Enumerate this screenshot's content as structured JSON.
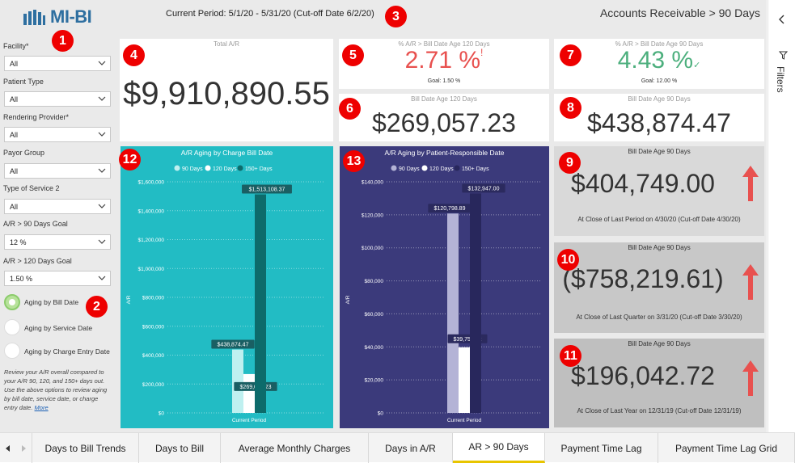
{
  "header": {
    "brand": "MI-BI",
    "period": "Current Period: 5/1/20 - 5/31/20 (Cut-off Date 6/2/20)",
    "page_title": "Accounts Receivable > 90 Days"
  },
  "badges": [
    "1",
    "2",
    "3",
    "4",
    "5",
    "6",
    "7",
    "8",
    "9",
    "10",
    "11",
    "12",
    "13"
  ],
  "slicers": [
    {
      "label": "Facility*",
      "value": "All"
    },
    {
      "label": "Patient Type",
      "value": "All"
    },
    {
      "label": "Rendering Provider*",
      "value": "All"
    },
    {
      "label": "Payor Group",
      "value": "All"
    },
    {
      "label": "Type of Service 2",
      "value": "All"
    },
    {
      "label": "A/R > 90 Days Goal",
      "value": "12 %"
    },
    {
      "label": "A/R > 120 Days Goal",
      "value": "1.50 %"
    }
  ],
  "aging_options": [
    {
      "label": "Aging by Bill Date",
      "selected": true
    },
    {
      "label": "Aging by Service Date",
      "selected": false
    },
    {
      "label": "Aging by Charge Entry Date",
      "selected": false
    }
  ],
  "note": {
    "text": "Review your A/R overall compared to your A/R 90, 120, and 150+ days out. Use the above options to review aging by bill date, service date, or charge entry date.",
    "link": "More"
  },
  "cards": {
    "total_ar": {
      "title": "Total A/R",
      "value": "$9,910,890.55"
    },
    "pct_120": {
      "title": "% A/R > Bill Date Age 120 Days",
      "value": "2.71 %",
      "flag": "!",
      "goal": "Goal: 1.50 %",
      "color": "#e8514f"
    },
    "pct_90": {
      "title": "% A/R > Bill Date Age 90 Days",
      "value": "4.43 %",
      "flag": "✓",
      "goal": "Goal: 12.00 %",
      "color": "#4caf7d"
    },
    "age_120": {
      "title": "Bill Date Age 120 Days",
      "value": "$269,057.23"
    },
    "age_90": {
      "title": "Bill Date Age 90 Days",
      "value": "$438,874.47"
    },
    "last_period": {
      "title": "Bill Date Age 90 Days",
      "value": "$404,749.00",
      "sub": "At Close of Last Period on 4/30/20 (Cut-off Date 4/30/20)"
    },
    "last_quarter": {
      "title": "Bill Date Age 90 Days",
      "value": "($758,219.61)",
      "sub": "At Close of Last Quarter on 3/31/20 (Cut-off Date 3/30/20)"
    },
    "last_year": {
      "title": "Bill Date Age 90 Days",
      "value": "$196,042.72",
      "sub": "At Close of Last Year on 12/31/19 (Cut-off Date 12/31/19)"
    }
  },
  "colors": {
    "accent_teal": "#22bcc4",
    "accent_indigo": "#3b3a7b",
    "arrow_red": "#e8514f",
    "badge_red": "#e00000"
  },
  "chart_data": [
    {
      "type": "bar",
      "title": "A/R Aging by Charge Bill Date",
      "categories": [
        "Current Period"
      ],
      "ylabel": "A/R",
      "ylim": [
        0,
        1600000
      ],
      "yticks": [
        "$0",
        "$200,000",
        "$400,000",
        "$600,000",
        "$800,000",
        "$1,000,000",
        "$1,200,000",
        "$1,400,000",
        "$1,600,000"
      ],
      "legend_position": "top",
      "series": [
        {
          "name": "90 Days",
          "values": [
            438874.47
          ],
          "label": "$438,874.47",
          "color": "#bff0f0"
        },
        {
          "name": "120 Days",
          "values": [
            269057.23
          ],
          "label": "$269,057.23",
          "color": "#ffffff"
        },
        {
          "name": "150+ Days",
          "values": [
            1513108.37
          ],
          "label": "$1,513,108.37",
          "color": "#0d6b6b"
        }
      ]
    },
    {
      "type": "bar",
      "title": "A/R Aging  by Patient-Responsible Date",
      "categories": [
        "Current Period"
      ],
      "ylabel": "A/R",
      "ylim": [
        0,
        140000
      ],
      "yticks": [
        "$0",
        "$20,000",
        "$40,000",
        "$60,000",
        "$80,000",
        "$100,000",
        "$120,000",
        "$140,000"
      ],
      "legend_position": "top",
      "series": [
        {
          "name": "90 Days",
          "values": [
            120798.89
          ],
          "label": "$120,798.89",
          "color": "#b4b3d6"
        },
        {
          "name": "120 Days",
          "values": [
            39757.92
          ],
          "label": "$39,757.92",
          "color": "#ffffff"
        },
        {
          "name": "150+ Days",
          "values": [
            132947.0
          ],
          "label": "$132,947.00",
          "color": "#28275c"
        }
      ]
    }
  ],
  "filters_pane": {
    "label": "Filters"
  },
  "tabs": [
    {
      "label": "Days to Bill Trends",
      "active": false
    },
    {
      "label": "Days to Bill",
      "active": false
    },
    {
      "label": "Average Monthly Charges",
      "active": false
    },
    {
      "label": "Days in A/R",
      "active": false
    },
    {
      "label": "AR > 90 Days",
      "active": true
    },
    {
      "label": "Payment Time Lag",
      "active": false
    },
    {
      "label": "Payment Time Lag Grid",
      "active": false
    }
  ]
}
